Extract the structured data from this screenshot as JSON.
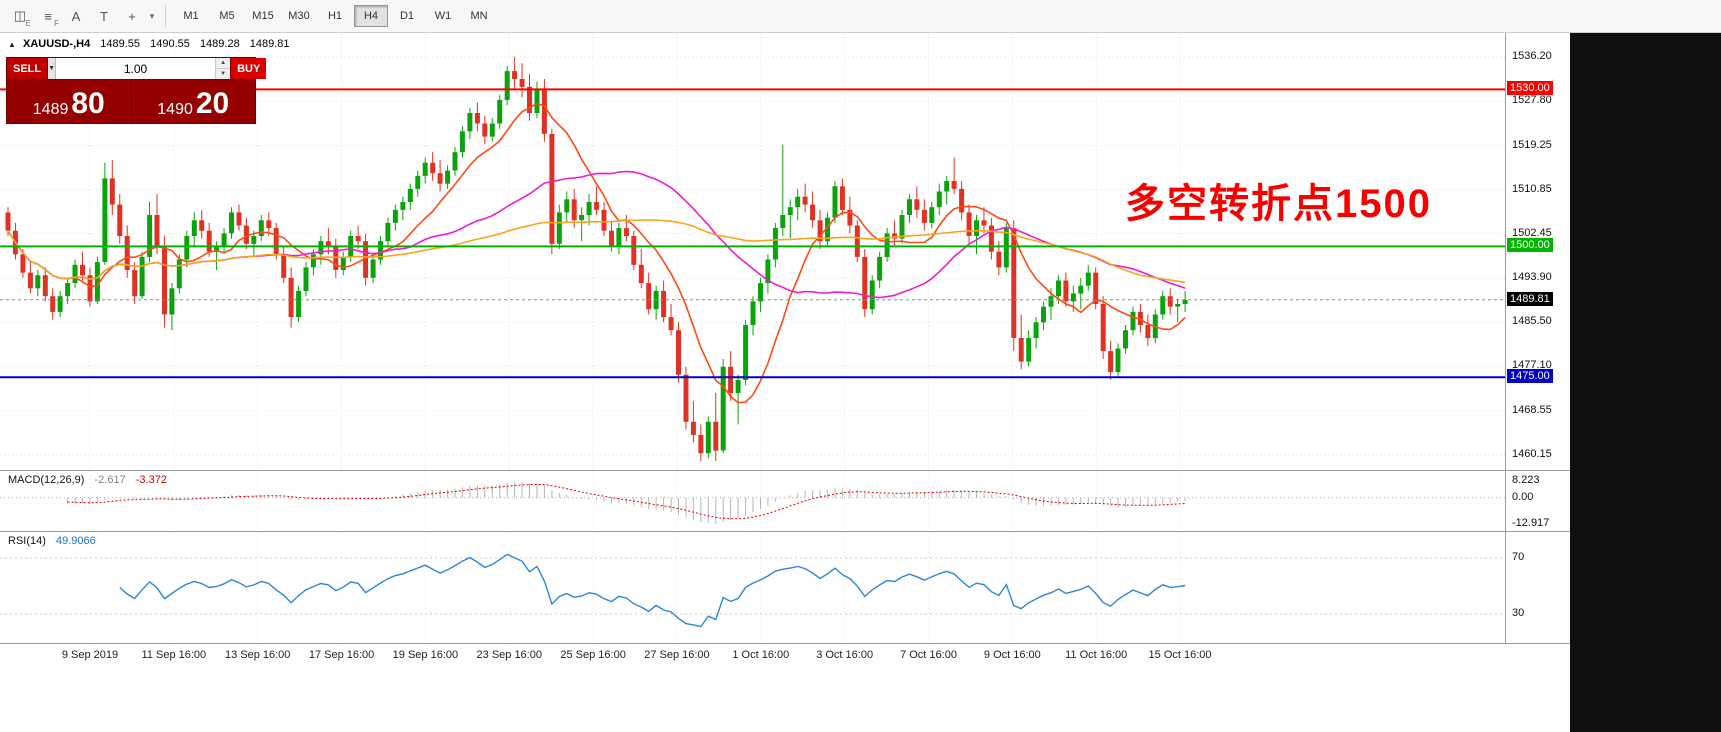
{
  "toolbar": {
    "icons": [
      {
        "name": "expert-advisor-icon",
        "glyph": "◫",
        "sub": "E"
      },
      {
        "name": "profile-charts-icon",
        "glyph": "≡",
        "sub": "F"
      },
      {
        "name": "text-label-icon",
        "glyph": "A",
        "sub": ""
      },
      {
        "name": "text-box-icon",
        "glyph": "T",
        "sub": ""
      },
      {
        "name": "crosshair-icon",
        "glyph": "+",
        "sub": ""
      }
    ],
    "dropdown_glyph": "▾",
    "timeframes": [
      "M1",
      "M5",
      "M15",
      "M30",
      "H1",
      "H4",
      "D1",
      "W1",
      "MN"
    ],
    "active_timeframe": "H4"
  },
  "symbol_info": {
    "collapse_glyph": "▲",
    "symbol": "XAUUSD-,H4",
    "open": "1489.55",
    "high": "1490.55",
    "low": "1489.28",
    "close": "1489.81"
  },
  "trade_panel": {
    "sell_label": "SELL",
    "buy_label": "BUY",
    "volume": "1.00",
    "dropdown_glyph": "▼",
    "spin_up": "▲",
    "spin_down": "▼",
    "sell_big": "1489",
    "sell_pips": "80",
    "buy_big": "1490",
    "buy_pips": "20"
  },
  "annotation": {
    "text": "多空转折点1500",
    "color": "#f80000"
  },
  "chart_data": {
    "type": "candlestick",
    "symbol": "XAUUSD-",
    "timeframe": "H4",
    "price_axis_labels": [
      "1536.20",
      "1527.80",
      "1519.25",
      "1510.85",
      "1502.45",
      "1493.90",
      "1485.50",
      "1477.10",
      "1468.55",
      "1460.15"
    ],
    "levels": [
      {
        "price": 1530.0,
        "label": "1530.00",
        "color": "#ff0000"
      },
      {
        "price": 1500.0,
        "label": "1500.00",
        "color": "#00b400"
      },
      {
        "price": 1475.0,
        "label": "1475.00",
        "color": "#0000c8"
      }
    ],
    "current_price": {
      "value": 1489.81,
      "label": "1489.81"
    },
    "colors": {
      "up": "#0ba30b",
      "down": "#e03224"
    },
    "moving_averages": [
      {
        "name": "ma-fast-line",
        "period": 10,
        "color": "#ff4a14"
      },
      {
        "name": "ma-mid-line",
        "period": 34,
        "color": "#ea1fd2"
      },
      {
        "name": "ma-slow-line",
        "period": 80,
        "color": "#f5a51e"
      }
    ],
    "date_labels": [
      "9 Sep 2019",
      "11 Sep 16:00",
      "13 Sep 16:00",
      "17 Sep 16:00",
      "19 Sep 16:00",
      "23 Sep 16:00",
      "25 Sep 16:00",
      "27 Sep 16:00",
      "1 Oct 16:00",
      "3 Oct 16:00",
      "7 Oct 16:00",
      "9 Oct 16:00",
      "11 Oct 16:00",
      "15 Oct 16:00"
    ],
    "candles": [
      [
        1506.5,
        1507.5,
        1502,
        1503
      ],
      [
        1503,
        1504.5,
        1497.5,
        1498.5
      ],
      [
        1498.5,
        1499.5,
        1494,
        1495
      ],
      [
        1495,
        1497,
        1491,
        1492
      ],
      [
        1492,
        1495.5,
        1490.5,
        1494.5
      ],
      [
        1494.5,
        1496,
        1489.5,
        1490.5
      ],
      [
        1490.5,
        1492,
        1486,
        1487.5
      ],
      [
        1487.5,
        1491.5,
        1486.5,
        1490.5
      ],
      [
        1490.5,
        1494,
        1489,
        1493
      ],
      [
        1493,
        1497.5,
        1492,
        1496.5
      ],
      [
        1496.5,
        1499,
        1493.5,
        1494.5
      ],
      [
        1494.5,
        1496,
        1488.5,
        1489.5
      ],
      [
        1489.5,
        1498,
        1489,
        1497
      ],
      [
        1497,
        1516,
        1496.5,
        1513
      ],
      [
        1513,
        1516.5,
        1506,
        1508
      ],
      [
        1508,
        1510,
        1500.5,
        1502
      ],
      [
        1502,
        1504,
        1494,
        1495.5
      ],
      [
        1495.5,
        1497,
        1489,
        1490.5
      ],
      [
        1490.5,
        1499,
        1490,
        1498
      ],
      [
        1498,
        1508.5,
        1497,
        1506
      ],
      [
        1506,
        1510,
        1498.5,
        1500
      ],
      [
        1500,
        1502,
        1484.5,
        1487
      ],
      [
        1487,
        1493,
        1484,
        1492
      ],
      [
        1492,
        1498.5,
        1491,
        1497.5
      ],
      [
        1497.5,
        1503,
        1496,
        1502
      ],
      [
        1502,
        1506.5,
        1500,
        1505
      ],
      [
        1505,
        1507,
        1501.5,
        1503
      ],
      [
        1503,
        1504.5,
        1498,
        1499
      ],
      [
        1499,
        1501,
        1495.5,
        1500
      ],
      [
        1500,
        1503.5,
        1499,
        1502.5
      ],
      [
        1502.5,
        1507.5,
        1501.5,
        1506.5
      ],
      [
        1506.5,
        1508,
        1503,
        1504
      ],
      [
        1504,
        1505.5,
        1499.5,
        1500.5
      ],
      [
        1500.5,
        1503,
        1498,
        1502
      ],
      [
        1502,
        1506,
        1501,
        1505
      ],
      [
        1505,
        1506.5,
        1502,
        1503.5
      ],
      [
        1503.5,
        1504.5,
        1497.5,
        1498.5
      ],
      [
        1498.5,
        1500,
        1493,
        1494
      ],
      [
        1494,
        1496,
        1484.5,
        1486.5
      ],
      [
        1486.5,
        1492.5,
        1485.5,
        1491.5
      ],
      [
        1491.5,
        1497,
        1490.5,
        1496
      ],
      [
        1496,
        1499.5,
        1494.5,
        1498.5
      ],
      [
        1498.5,
        1502,
        1496.5,
        1501
      ],
      [
        1501,
        1503.5,
        1498.5,
        1500
      ],
      [
        1500,
        1501.5,
        1494,
        1495.5
      ],
      [
        1495.5,
        1499,
        1494.5,
        1498
      ],
      [
        1498,
        1503,
        1497,
        1502
      ],
      [
        1502,
        1504,
        1499.5,
        1501
      ],
      [
        1501,
        1502.5,
        1492.5,
        1494
      ],
      [
        1494,
        1498.5,
        1493,
        1497.5
      ],
      [
        1497.5,
        1502,
        1496.5,
        1501
      ],
      [
        1501,
        1505.5,
        1500,
        1504.5
      ],
      [
        1504.5,
        1508,
        1503,
        1507
      ],
      [
        1507,
        1509.5,
        1505,
        1508.5
      ],
      [
        1508.5,
        1512,
        1507,
        1511
      ],
      [
        1511,
        1514.5,
        1509.5,
        1513.5
      ],
      [
        1513.5,
        1517,
        1512,
        1516
      ],
      [
        1516,
        1518,
        1512.5,
        1514
      ],
      [
        1514,
        1516.5,
        1510.5,
        1512
      ],
      [
        1512,
        1515.5,
        1511,
        1514.5
      ],
      [
        1514.5,
        1519,
        1513.5,
        1518
      ],
      [
        1518,
        1523,
        1517,
        1522
      ],
      [
        1522,
        1526.5,
        1520.5,
        1525.5
      ],
      [
        1525.5,
        1527.5,
        1522,
        1523.5
      ],
      [
        1523.5,
        1525,
        1519.5,
        1521
      ],
      [
        1521,
        1524.5,
        1520,
        1523.5
      ],
      [
        1523.5,
        1529,
        1522.5,
        1528
      ],
      [
        1528,
        1534.5,
        1527,
        1533.5
      ],
      [
        1533.5,
        1536.2,
        1530,
        1532
      ],
      [
        1532,
        1535,
        1528.5,
        1530.5
      ],
      [
        1530.5,
        1533,
        1524,
        1525.5
      ],
      [
        1525.5,
        1531.5,
        1524.5,
        1530
      ],
      [
        1530,
        1532,
        1520,
        1521.5
      ],
      [
        1521.5,
        1522.5,
        1498.5,
        1500.5
      ],
      [
        1500.5,
        1508,
        1499.5,
        1506.5
      ],
      [
        1506.5,
        1510.5,
        1504.5,
        1509
      ],
      [
        1509,
        1511,
        1503.5,
        1505
      ],
      [
        1505,
        1507.5,
        1501,
        1506
      ],
      [
        1506,
        1510,
        1504,
        1508.5
      ],
      [
        1508.5,
        1511.5,
        1506,
        1507
      ],
      [
        1507,
        1508.5,
        1502,
        1503
      ],
      [
        1503,
        1505,
        1499,
        1500
      ],
      [
        1500,
        1504.5,
        1498.5,
        1503.5
      ],
      [
        1503.5,
        1506,
        1501,
        1502
      ],
      [
        1502,
        1503,
        1495.5,
        1496.5
      ],
      [
        1496.5,
        1499.5,
        1492,
        1493
      ],
      [
        1493,
        1495,
        1487,
        1488
      ],
      [
        1488,
        1492.5,
        1486,
        1491.5
      ],
      [
        1491.5,
        1493.5,
        1485.5,
        1486.5
      ],
      [
        1486.5,
        1489,
        1483,
        1484
      ],
      [
        1484,
        1485.5,
        1474,
        1475.5
      ],
      [
        1475.5,
        1477,
        1465,
        1466.5
      ],
      [
        1466.5,
        1470.5,
        1462.5,
        1464
      ],
      [
        1464,
        1466,
        1458.9,
        1460.5
      ],
      [
        1460.5,
        1467.5,
        1459.5,
        1466.5
      ],
      [
        1466.5,
        1472,
        1459,
        1461
      ],
      [
        1461,
        1478.5,
        1460.5,
        1477
      ],
      [
        1477,
        1480,
        1470.5,
        1472
      ],
      [
        1472,
        1475.5,
        1466,
        1474.5
      ],
      [
        1474.5,
        1486,
        1473.5,
        1485
      ],
      [
        1485,
        1490.5,
        1483,
        1489.5
      ],
      [
        1489.5,
        1494,
        1487.5,
        1493
      ],
      [
        1493,
        1498.5,
        1491,
        1497.5
      ],
      [
        1497.5,
        1504.5,
        1496,
        1503.5
      ],
      [
        1503.5,
        1519.5,
        1502,
        1506
      ],
      [
        1506,
        1509,
        1501.5,
        1507.5
      ],
      [
        1507.5,
        1511,
        1505,
        1509.5
      ],
      [
        1509.5,
        1512,
        1506.5,
        1508
      ],
      [
        1508,
        1510.5,
        1503.5,
        1505
      ],
      [
        1505,
        1507,
        1499.5,
        1501
      ],
      [
        1501,
        1506.5,
        1500,
        1505.5
      ],
      [
        1505.5,
        1512.5,
        1504.5,
        1511.5
      ],
      [
        1511.5,
        1513,
        1506,
        1507
      ],
      [
        1507,
        1509.5,
        1502.5,
        1504
      ],
      [
        1504,
        1505,
        1497,
        1498
      ],
      [
        1498,
        1499.5,
        1486.5,
        1488
      ],
      [
        1488,
        1494.5,
        1487,
        1493.5
      ],
      [
        1493.5,
        1499,
        1492,
        1498
      ],
      [
        1498,
        1503.5,
        1497,
        1502.5
      ],
      [
        1502.5,
        1505,
        1500,
        1501.5
      ],
      [
        1501.5,
        1507,
        1500.5,
        1506
      ],
      [
        1506,
        1510,
        1504.5,
        1509
      ],
      [
        1509,
        1511.5,
        1505.5,
        1507
      ],
      [
        1507,
        1509,
        1503,
        1504.5
      ],
      [
        1504.5,
        1508.5,
        1503.5,
        1507.5
      ],
      [
        1507.5,
        1512,
        1506,
        1510.5
      ],
      [
        1510.5,
        1513.5,
        1508,
        1512.5
      ],
      [
        1512.5,
        1517,
        1510,
        1511
      ],
      [
        1511,
        1512.5,
        1505,
        1506.5
      ],
      [
        1506.5,
        1508,
        1500.5,
        1502
      ],
      [
        1502,
        1506,
        1498.5,
        1505
      ],
      [
        1505,
        1507.5,
        1502.5,
        1504
      ],
      [
        1504,
        1505.5,
        1497.5,
        1499
      ],
      [
        1499,
        1501,
        1494.5,
        1496
      ],
      [
        1496,
        1504.5,
        1495,
        1503.5
      ],
      [
        1503.5,
        1505,
        1480,
        1482.5
      ],
      [
        1482.5,
        1487,
        1476.5,
        1478
      ],
      [
        1478,
        1484,
        1477,
        1482.5
      ],
      [
        1482.5,
        1486.5,
        1480.5,
        1485.5
      ],
      [
        1485.5,
        1489.5,
        1484,
        1488.5
      ],
      [
        1488.5,
        1492,
        1486,
        1490.5
      ],
      [
        1490.5,
        1494.5,
        1489,
        1493.5
      ],
      [
        1493.5,
        1495,
        1488.5,
        1489.5
      ],
      [
        1489.5,
        1492.5,
        1487.5,
        1491
      ],
      [
        1491,
        1494,
        1488,
        1492.5
      ],
      [
        1492.5,
        1496.5,
        1491.5,
        1495
      ],
      [
        1495,
        1496,
        1488,
        1489
      ],
      [
        1489,
        1490.5,
        1478.5,
        1480
      ],
      [
        1480,
        1482,
        1474.5,
        1476
      ],
      [
        1476,
        1481.5,
        1475,
        1480.5
      ],
      [
        1480.5,
        1485,
        1479.5,
        1484
      ],
      [
        1484,
        1488.5,
        1483,
        1487.5
      ],
      [
        1487.5,
        1489,
        1483.5,
        1485
      ],
      [
        1485,
        1487,
        1481,
        1482.5
      ],
      [
        1482.5,
        1488,
        1481.5,
        1487
      ],
      [
        1487,
        1491.5,
        1486,
        1490.5
      ],
      [
        1490.5,
        1492,
        1487,
        1488.5
      ],
      [
        1488.5,
        1490,
        1485.5,
        1489
      ],
      [
        1489,
        1491.5,
        1487.5,
        1489.8
      ]
    ],
    "macd": {
      "title": "MACD(12,26,9)",
      "main_value": "-2.617",
      "signal_value": "-3.372",
      "fast": 12,
      "slow": 26,
      "signal": 9,
      "axis_labels": [
        "8.223",
        "0.00",
        "-12.917"
      ],
      "histogram_color": "#b4b4b4",
      "signal_color": "#e00000"
    },
    "rsi": {
      "title": "RSI(14)",
      "value": "49.9066",
      "period": 14,
      "axis_labels": [
        "70",
        "30"
      ],
      "levels": [
        70,
        30
      ],
      "color": "#2a86d8"
    }
  }
}
